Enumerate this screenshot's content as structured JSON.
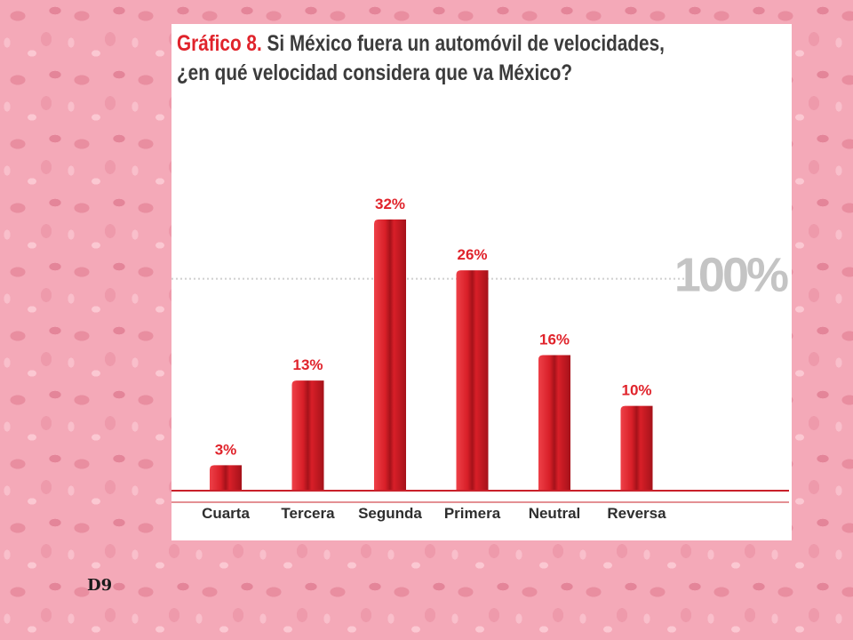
{
  "title": {
    "prefix": "Gráfico 8.",
    "line1": " Si México fuera un automóvil de velocidades,",
    "line2": "¿en qué velocidad considera que va México?"
  },
  "reference_label": "100%",
  "page_number": "D9",
  "colors": {
    "bar": "#d81f28",
    "bar_dark": "#a5121a",
    "bar_light": "#ee4048",
    "value_label": "#e0232b",
    "category_label": "#2e2e2e",
    "baseline": "#c9202a",
    "reference_text": "#c4c4c4",
    "reference_line": "#cfcfcf"
  },
  "chart_data": {
    "type": "bar",
    "categories": [
      "Cuarta",
      "Tercera",
      "Segunda",
      "Primera",
      "Neutral",
      "Reversa"
    ],
    "values": [
      3,
      13,
      32,
      26,
      16,
      10
    ],
    "value_labels": [
      "3%",
      "13%",
      "32%",
      "26%",
      "16%",
      "10%"
    ],
    "ylim": [
      0,
      45
    ],
    "reference_value": 25,
    "grid": false,
    "legend": "none"
  }
}
